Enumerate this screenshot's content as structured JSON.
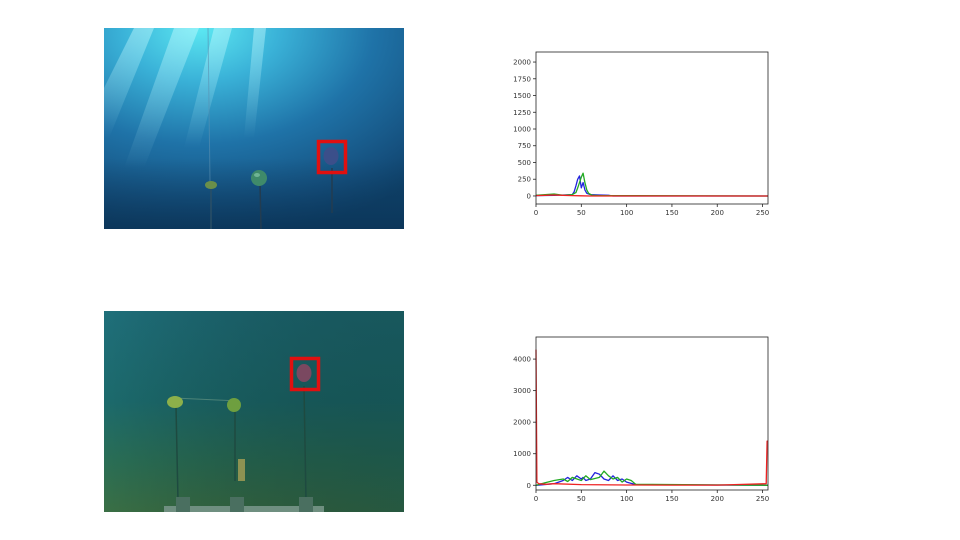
{
  "chart_data": [
    {
      "type": "line",
      "title": "",
      "xlabel": "",
      "ylabel": "",
      "xlim": [
        0,
        256
      ],
      "ylim": [
        -120,
        2150
      ],
      "xticks": [
        0,
        50,
        100,
        150,
        200,
        250
      ],
      "yticks": [
        0,
        250,
        500,
        750,
        1000,
        1250,
        1500,
        1750,
        2000
      ],
      "grid": false,
      "series": [
        {
          "color": "#2222dd",
          "x": [
            0,
            20,
            40,
            42,
            44,
            46,
            48,
            50,
            52,
            54,
            56,
            60,
            70,
            80,
            85,
            90,
            256
          ],
          "y": [
            5,
            8,
            20,
            60,
            150,
            250,
            300,
            120,
            200,
            90,
            40,
            20,
            15,
            10,
            0,
            0,
            0
          ]
        },
        {
          "color": "#22aa22",
          "x": [
            0,
            20,
            30,
            40,
            44,
            46,
            48,
            50,
            52,
            54,
            56,
            58,
            62,
            70,
            256
          ],
          "y": [
            10,
            30,
            10,
            20,
            50,
            120,
            200,
            280,
            340,
            200,
            90,
            40,
            10,
            5,
            0
          ]
        },
        {
          "color": "#ee2222",
          "x": [
            0,
            10,
            20,
            30,
            40,
            50,
            60,
            256
          ],
          "y": [
            5,
            10,
            15,
            10,
            5,
            3,
            0,
            0
          ]
        }
      ]
    },
    {
      "type": "line",
      "title": "",
      "xlabel": "",
      "ylabel": "",
      "xlim": [
        0,
        256
      ],
      "ylim": [
        -150,
        4700
      ],
      "xticks": [
        0,
        50,
        100,
        150,
        200,
        250
      ],
      "yticks": [
        0,
        1000,
        2000,
        3000,
        4000
      ],
      "grid": false,
      "series": [
        {
          "color": "#2222dd",
          "x": [
            0,
            20,
            30,
            35,
            40,
            45,
            50,
            52,
            55,
            60,
            65,
            70,
            75,
            80,
            85,
            90,
            95,
            100,
            110,
            256
          ],
          "y": [
            0,
            50,
            150,
            250,
            150,
            300,
            200,
            250,
            150,
            200,
            400,
            350,
            200,
            150,
            300,
            150,
            200,
            100,
            20,
            0
          ]
        },
        {
          "color": "#22aa22",
          "x": [
            0,
            10,
            20,
            30,
            35,
            40,
            50,
            55,
            60,
            70,
            75,
            80,
            85,
            90,
            95,
            100,
            105,
            110,
            256
          ],
          "y": [
            0,
            80,
            150,
            200,
            120,
            250,
            150,
            300,
            180,
            250,
            450,
            300,
            200,
            250,
            100,
            200,
            150,
            30,
            0
          ]
        },
        {
          "color": "#ee2222",
          "x": [
            0,
            1,
            3,
            10,
            20,
            50,
            100,
            150,
            200,
            254,
            255,
            256
          ],
          "y": [
            4300,
            100,
            50,
            30,
            50,
            20,
            10,
            5,
            5,
            50,
            1400,
            1400
          ]
        }
      ]
    }
  ]
}
